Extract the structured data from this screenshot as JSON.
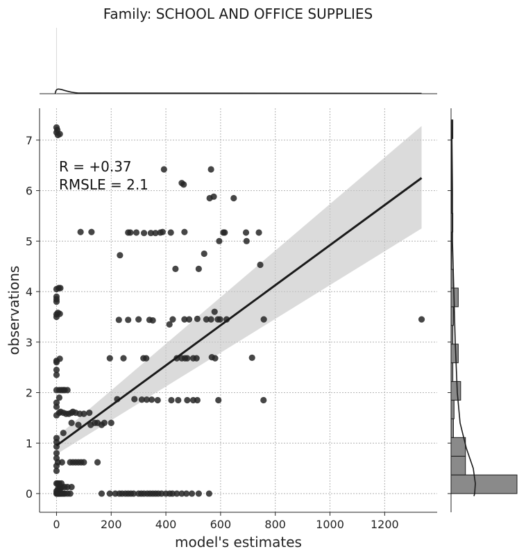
{
  "chart_data": {
    "type": "scatter",
    "title": "Family: SCHOOL AND OFFICE SUPPLIES",
    "xlabel": "model's estimates",
    "ylabel": "observations",
    "xlim": [
      -62,
      1392
    ],
    "ylim": [
      -0.37,
      7.63
    ],
    "xticks": [
      0,
      200,
      400,
      600,
      800,
      1000,
      1200
    ],
    "yticks": [
      0,
      1,
      2,
      3,
      4,
      5,
      6,
      7
    ],
    "grid": true,
    "annotations": [
      "R = +0.37",
      "RMSLE =  2.1"
    ],
    "regression": {
      "x": [
        0,
        1335
      ],
      "y": [
        0.95,
        6.25
      ],
      "ci_upper": [
        1.12,
        7.28
      ],
      "ci_lower": [
        0.78,
        5.25
      ]
    },
    "marginal_y_hist": {
      "bins": [
        0.0,
        0.37,
        0.74,
        1.11,
        1.48,
        1.85,
        2.22,
        2.59,
        2.96,
        3.33,
        3.7,
        4.07,
        4.44,
        4.81,
        5.18,
        5.55,
        5.92,
        6.29,
        6.66,
        7.03,
        7.4
      ],
      "counts": [
        110,
        24,
        24,
        4,
        5,
        16,
        3,
        12,
        3,
        4,
        12,
        4,
        1,
        1,
        3,
        1,
        1,
        1,
        1,
        3
      ]
    },
    "points": [
      [
        0,
        0
      ],
      [
        2,
        0
      ],
      [
        4,
        0
      ],
      [
        6,
        0
      ],
      [
        8,
        0
      ],
      [
        10,
        0
      ],
      [
        12,
        0
      ],
      [
        15,
        0
      ],
      [
        18,
        0
      ],
      [
        22,
        0
      ],
      [
        26,
        0
      ],
      [
        30,
        0
      ],
      [
        40,
        0
      ],
      [
        50,
        0
      ],
      [
        0,
        0.05
      ],
      [
        3,
        0.05
      ],
      [
        6,
        0.1
      ],
      [
        10,
        0.1
      ],
      [
        14,
        0.1
      ],
      [
        20,
        0.13
      ],
      [
        30,
        0.13
      ],
      [
        40,
        0.13
      ],
      [
        55,
        0.13
      ],
      [
        0,
        0.2
      ],
      [
        4,
        0.2
      ],
      [
        10,
        0.2
      ],
      [
        18,
        0.2
      ],
      [
        165,
        0
      ],
      [
        195,
        0
      ],
      [
        215,
        0
      ],
      [
        230,
        0
      ],
      [
        240,
        0
      ],
      [
        252,
        0
      ],
      [
        262,
        0
      ],
      [
        272,
        0
      ],
      [
        282,
        0
      ],
      [
        300,
        0
      ],
      [
        310,
        0
      ],
      [
        320,
        0
      ],
      [
        332,
        0
      ],
      [
        342,
        0
      ],
      [
        352,
        0
      ],
      [
        362,
        0
      ],
      [
        372,
        0
      ],
      [
        384,
        0
      ],
      [
        400,
        0
      ],
      [
        414,
        0
      ],
      [
        424,
        0
      ],
      [
        440,
        0
      ],
      [
        458,
        0
      ],
      [
        475,
        0
      ],
      [
        495,
        0
      ],
      [
        520,
        0
      ],
      [
        558,
        0
      ],
      [
        0,
        0.45
      ],
      [
        0,
        0.55
      ],
      [
        0,
        0.7
      ],
      [
        0,
        0.8
      ],
      [
        0,
        0.93
      ],
      [
        0,
        1.02
      ],
      [
        0,
        1.1
      ],
      [
        5,
        0.62
      ],
      [
        20,
        0.62
      ],
      [
        50,
        0.62
      ],
      [
        60,
        0.62
      ],
      [
        70,
        0.62
      ],
      [
        80,
        0.62
      ],
      [
        90,
        0.62
      ],
      [
        100,
        0.62
      ],
      [
        150,
        0.62
      ],
      [
        25,
        1.2
      ],
      [
        55,
        1.4
      ],
      [
        80,
        1.36
      ],
      [
        120,
        1.6
      ],
      [
        125,
        1.36
      ],
      [
        140,
        1.4
      ],
      [
        150,
        1.4
      ],
      [
        165,
        1.36
      ],
      [
        175,
        1.4
      ],
      [
        200,
        1.4
      ],
      [
        0,
        1.55
      ],
      [
        10,
        1.6
      ],
      [
        15,
        1.62
      ],
      [
        25,
        1.6
      ],
      [
        35,
        1.58
      ],
      [
        45,
        1.58
      ],
      [
        55,
        1.6
      ],
      [
        60,
        1.62
      ],
      [
        70,
        1.6
      ],
      [
        85,
        1.58
      ],
      [
        100,
        1.58
      ],
      [
        0,
        1.72
      ],
      [
        0,
        1.8
      ],
      [
        10,
        1.9
      ],
      [
        0,
        2.05
      ],
      [
        10,
        2.05
      ],
      [
        18,
        2.05
      ],
      [
        25,
        2.05
      ],
      [
        30,
        2.05
      ],
      [
        40,
        2.05
      ],
      [
        222,
        1.87
      ],
      [
        285,
        1.87
      ],
      [
        312,
        1.86
      ],
      [
        330,
        1.86
      ],
      [
        348,
        1.86
      ],
      [
        370,
        1.85
      ],
      [
        420,
        1.85
      ],
      [
        445,
        1.85
      ],
      [
        478,
        1.85
      ],
      [
        500,
        1.85
      ],
      [
        515,
        1.85
      ],
      [
        592,
        1.85
      ],
      [
        757,
        1.85
      ],
      [
        0,
        2.35
      ],
      [
        0,
        2.45
      ],
      [
        0,
        2.6
      ],
      [
        0,
        2.63
      ],
      [
        12,
        2.67
      ],
      [
        195,
        2.68
      ],
      [
        245,
        2.68
      ],
      [
        318,
        2.68
      ],
      [
        328,
        2.68
      ],
      [
        440,
        2.68
      ],
      [
        458,
        2.68
      ],
      [
        470,
        2.68
      ],
      [
        478,
        2.68
      ],
      [
        500,
        2.68
      ],
      [
        512,
        2.68
      ],
      [
        568,
        2.7
      ],
      [
        580,
        2.68
      ],
      [
        715,
        2.69
      ],
      [
        0,
        3.5
      ],
      [
        0,
        3.55
      ],
      [
        5,
        3.58
      ],
      [
        12,
        3.56
      ],
      [
        0,
        3.8
      ],
      [
        0,
        3.85
      ],
      [
        0,
        3.9
      ],
      [
        0,
        4.05
      ],
      [
        8,
        4.07
      ],
      [
        14,
        4.07
      ],
      [
        228,
        3.44
      ],
      [
        262,
        3.44
      ],
      [
        300,
        3.45
      ],
      [
        340,
        3.44
      ],
      [
        352,
        3.43
      ],
      [
        413,
        3.35
      ],
      [
        425,
        3.45
      ],
      [
        468,
        3.45
      ],
      [
        485,
        3.45
      ],
      [
        515,
        3.46
      ],
      [
        548,
        3.45
      ],
      [
        565,
        3.45
      ],
      [
        578,
        3.6
      ],
      [
        590,
        3.45
      ],
      [
        598,
        3.45
      ],
      [
        622,
        3.45
      ],
      [
        758,
        3.45
      ],
      [
        1335,
        3.45
      ],
      [
        232,
        4.72
      ],
      [
        435,
        4.45
      ],
      [
        520,
        4.45
      ],
      [
        540,
        4.75
      ],
      [
        575,
        5.88
      ],
      [
        595,
        5.0
      ],
      [
        610,
        5.17
      ],
      [
        615,
        5.17
      ],
      [
        648,
        5.85
      ],
      [
        745,
        4.53
      ],
      [
        88,
        5.18
      ],
      [
        128,
        5.18
      ],
      [
        262,
        5.17
      ],
      [
        270,
        5.17
      ],
      [
        292,
        5.17
      ],
      [
        320,
        5.16
      ],
      [
        345,
        5.16
      ],
      [
        362,
        5.16
      ],
      [
        380,
        5.17
      ],
      [
        388,
        5.18
      ],
      [
        418,
        5.17
      ],
      [
        468,
        5.18
      ],
      [
        693,
        5.17
      ],
      [
        740,
        5.17
      ],
      [
        695,
        5.0
      ],
      [
        393,
        6.42
      ],
      [
        458,
        6.15
      ],
      [
        465,
        6.12
      ],
      [
        565,
        6.42
      ],
      [
        560,
        5.85
      ],
      [
        0,
        7.15
      ],
      [
        0,
        7.25
      ],
      [
        5,
        7.1
      ],
      [
        12,
        7.12
      ],
      [
        3,
        7.2
      ]
    ]
  }
}
